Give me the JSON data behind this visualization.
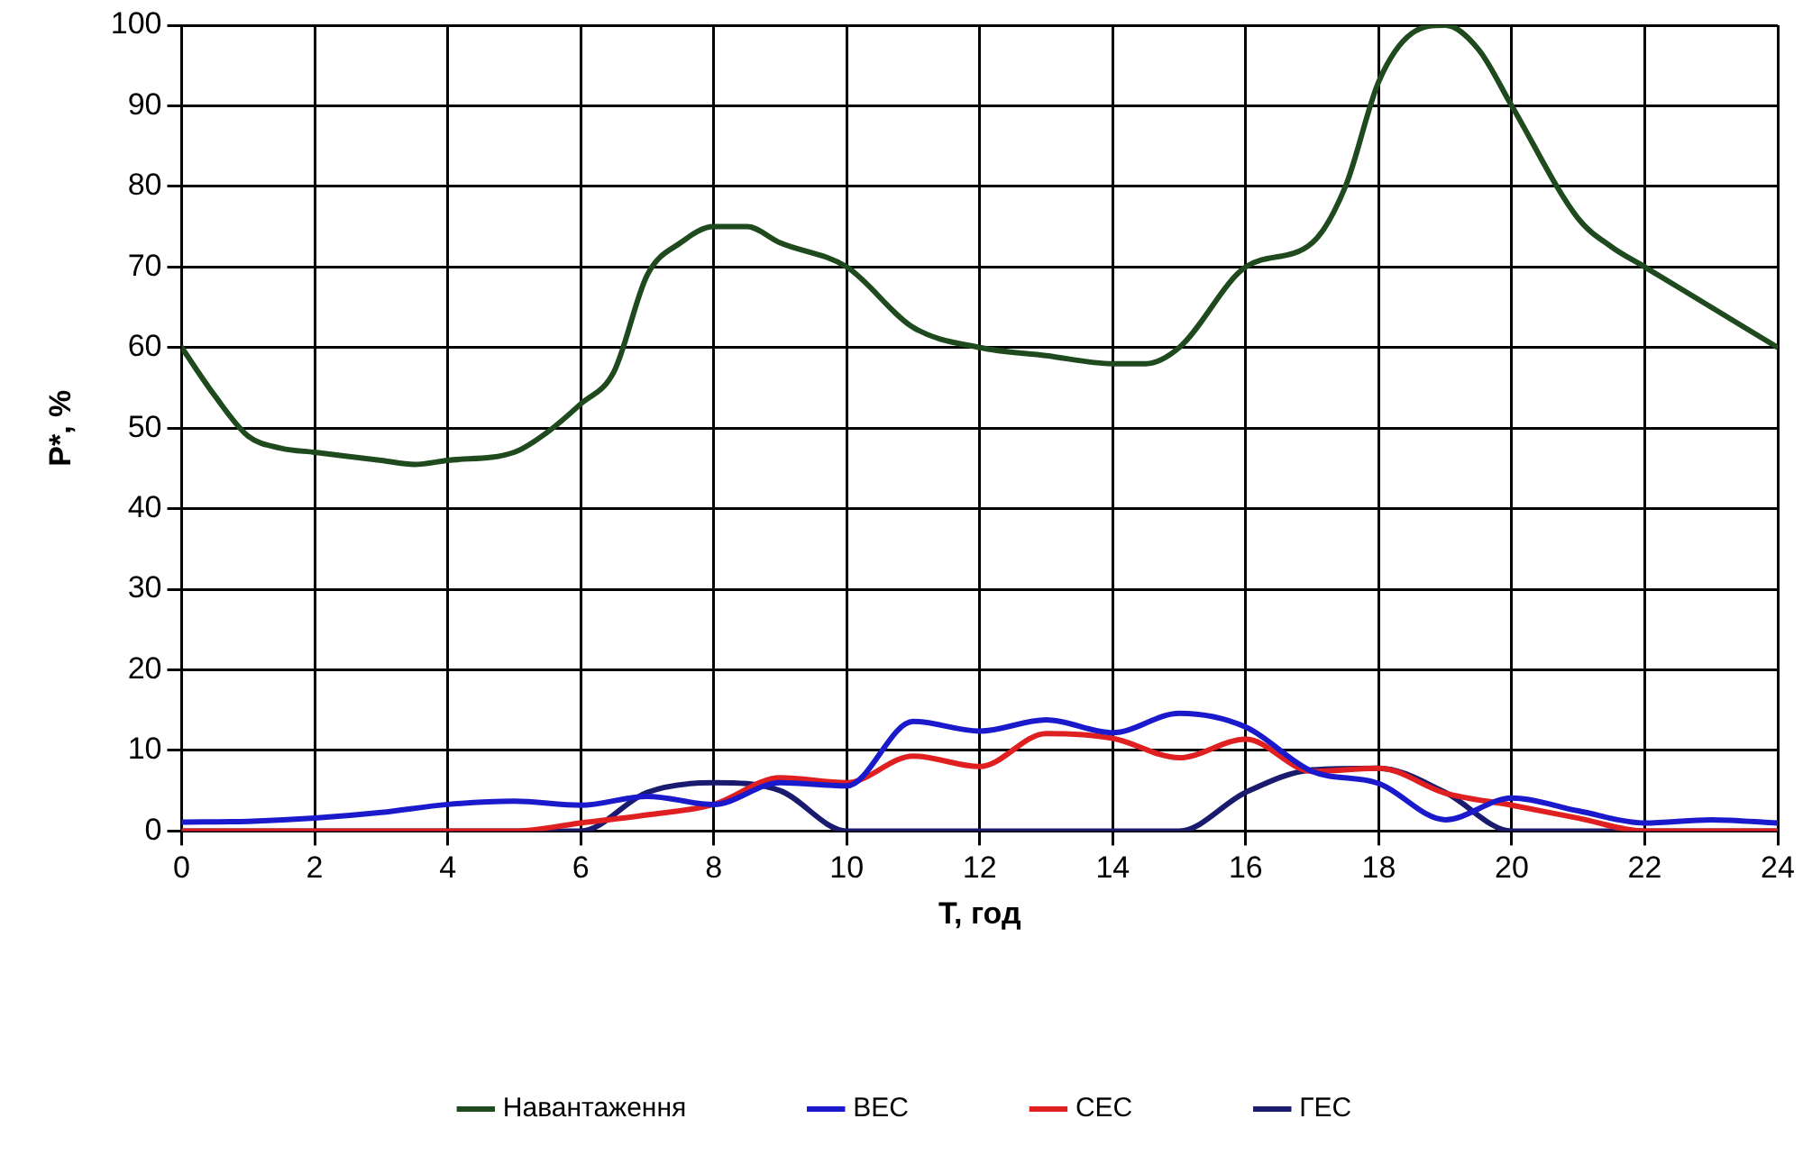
{
  "chart_data": {
    "type": "line",
    "xlabel": "T, год",
    "ylabel": "P*, %",
    "xlim": [
      0,
      24
    ],
    "xticks": [
      0,
      2,
      4,
      6,
      8,
      10,
      12,
      14,
      16,
      18,
      20,
      22,
      24
    ],
    "ylim": [
      0,
      100
    ],
    "yticks": [
      0,
      10,
      20,
      30,
      40,
      50,
      60,
      70,
      80,
      90,
      100
    ],
    "grid": true,
    "legend": "bottom",
    "marker": "none",
    "line_style": "solid",
    "series": [
      {
        "name": "Навантаження",
        "color": "#1e4a1e",
        "x": [
          0,
          0.5,
          1,
          1.5,
          2,
          3,
          3.5,
          4,
          5,
          5.5,
          6,
          6.5,
          7,
          7.5,
          8,
          8.5,
          9,
          10,
          11,
          12,
          13,
          14,
          14.5,
          15,
          16,
          17,
          17.5,
          18,
          18.5,
          19,
          19.5,
          20,
          21,
          21.5,
          22,
          23,
          24
        ],
        "values": [
          60,
          54,
          49,
          47.5,
          47,
          46,
          45.5,
          46,
          47,
          49.5,
          53,
          57,
          69,
          73,
          75,
          75,
          73,
          70,
          62.5,
          60,
          59,
          58,
          58,
          60,
          70,
          73,
          80,
          93,
          99,
          100,
          97,
          90,
          76,
          72.5,
          70,
          65,
          60
        ]
      },
      {
        "name": "ВЕС",
        "color": "#1a1acc",
        "x": [
          0,
          1,
          2,
          3,
          4,
          5,
          6,
          7,
          8,
          9,
          10,
          11,
          12,
          13,
          14,
          15,
          16,
          17,
          18,
          19,
          20,
          21,
          22,
          23,
          24
        ],
        "values": [
          1.1,
          1.2,
          1.6,
          2.3,
          3.3,
          3.7,
          3.2,
          4.3,
          3.3,
          6,
          5.6,
          13.6,
          12.4,
          13.8,
          12.2,
          14.6,
          12.9,
          7.4,
          5.9,
          1.4,
          4.1,
          2.5,
          1,
          1.4,
          1
        ]
      },
      {
        "name": "СЕС",
        "color": "#e02020",
        "x": [
          0,
          1,
          2,
          3,
          4,
          5,
          6,
          7,
          8,
          9,
          10,
          11,
          12,
          13,
          14,
          15,
          16,
          17,
          18,
          19,
          20,
          21,
          22,
          23,
          24
        ],
        "values": [
          0,
          0,
          0,
          0,
          0,
          0,
          1,
          2,
          3.3,
          6.6,
          6,
          9.3,
          8,
          12.1,
          11.5,
          9.1,
          11.4,
          7.4,
          7.8,
          4.7,
          3.2,
          1.6,
          0,
          0,
          0
        ]
      },
      {
        "name": "ГЕС",
        "color": "#1a1a6e",
        "x": [
          0,
          1,
          2,
          3,
          4,
          5,
          6,
          7,
          8,
          9,
          10,
          11,
          12,
          13,
          14,
          15,
          16,
          17,
          18,
          19,
          20,
          21,
          22,
          23,
          24
        ],
        "values": [
          0,
          0,
          0,
          0,
          0,
          0,
          0,
          4.8,
          6,
          5,
          0,
          0,
          0,
          0,
          0,
          0,
          4.8,
          7.6,
          7.8,
          4.8,
          0,
          0,
          0,
          0,
          0
        ]
      }
    ]
  }
}
